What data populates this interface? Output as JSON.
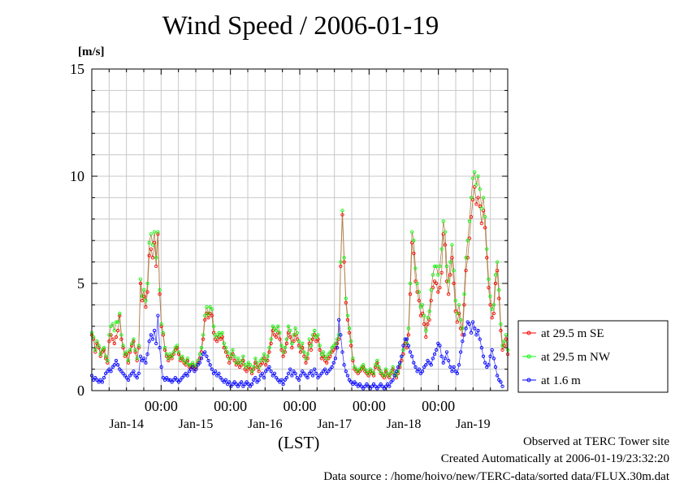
{
  "chart_data": {
    "type": "line",
    "title": "Wind Speed / 2006-01-19",
    "ylabel": "[m/s]",
    "xlabel": "(LST)",
    "ylim": [
      0,
      15
    ],
    "yticks": [
      "0",
      "5",
      "10",
      "15"
    ],
    "x_hour_ticks": [
      "00:00",
      "00:00",
      "00:00",
      "00:00",
      "00:00"
    ],
    "x_day_labels": [
      "Jan-14",
      "Jan-15",
      "Jan-16",
      "Jan-17",
      "Jan-18",
      "Jan-19"
    ],
    "grid": true,
    "legend_position": "right",
    "interval_minutes": 30,
    "series": [
      {
        "name": "at 29.5 m SE",
        "color": "#ff0000",
        "values": [
          2.6,
          2.4,
          1.8,
          2.2,
          2.0,
          1.6,
          1.8,
          1.9,
          1.5,
          1.3,
          2.3,
          2.6,
          2.4,
          2.2,
          2.5,
          2.8,
          3.5,
          2.4,
          2.0,
          1.6,
          1.7,
          1.3,
          1.8,
          2.1,
          2.3,
          1.8,
          1.4,
          2.0,
          5.0,
          4.2,
          4.4,
          3.9,
          4.6,
          6.3,
          6.6,
          6.2,
          6.9,
          5.8,
          7.3,
          4.5,
          3.0,
          2.6,
          1.9,
          1.6,
          1.4,
          1.6,
          1.5,
          1.7,
          1.9,
          2.0,
          1.7,
          1.4,
          1.5,
          1.3,
          1.2,
          1.4,
          1.1,
          1.1,
          1.2,
          1.0,
          1.1,
          1.3,
          1.5,
          1.8,
          2.4,
          3.3,
          3.6,
          3.4,
          3.6,
          3.5,
          2.7,
          2.4,
          2.3,
          2.5,
          2.4,
          2.5,
          2.0,
          1.8,
          1.6,
          1.3,
          1.5,
          1.7,
          1.4,
          1.2,
          1.3,
          1.1,
          1.2,
          1.4,
          1.0,
          0.9,
          1.1,
          1.0,
          0.8,
          1.0,
          1.3,
          1.1,
          0.9,
          1.2,
          1.3,
          1.5,
          1.2,
          1.4,
          1.8,
          2.2,
          2.8,
          2.6,
          2.5,
          2.7,
          2.4,
          1.9,
          1.6,
          1.8,
          2.2,
          2.7,
          2.5,
          2.0,
          2.3,
          2.6,
          2.4,
          2.1,
          1.8,
          2.0,
          1.6,
          1.3,
          1.5,
          2.2,
          1.9,
          2.4,
          2.6,
          2.3,
          2.4,
          1.9,
          1.5,
          1.6,
          1.4,
          1.3,
          1.5,
          1.6,
          1.8,
          1.9,
          2.0,
          2.2,
          2.4,
          5.8,
          8.2,
          6.0,
          4.1,
          3.3,
          2.7,
          2.1,
          1.4,
          1.0,
          0.9,
          0.8,
          0.9,
          1.0,
          1.1,
          0.9,
          0.8,
          0.7,
          0.9,
          0.8,
          0.7,
          1.1,
          1.3,
          1.0,
          0.8,
          0.7,
          0.6,
          0.9,
          0.7,
          0.6,
          0.8,
          1.0,
          0.7,
          0.6,
          0.8,
          1.1,
          1.4,
          1.7,
          2.2,
          2.0,
          2.6,
          4.5,
          6.9,
          6.4,
          5.1,
          4.6,
          4.2,
          3.5,
          3.6,
          3.1,
          2.5,
          3.1,
          3.3,
          4.2,
          4.8,
          5.1,
          5.0,
          4.6,
          4.8,
          5.5,
          7.3,
          6.8,
          5.1,
          4.5,
          5.4,
          6.2,
          5.0,
          3.7,
          3.2,
          3.6,
          2.9,
          2.6,
          4.0,
          5.6,
          6.2,
          7.1,
          8.1,
          8.9,
          9.5,
          8.7,
          9.0,
          8.6,
          7.8,
          8.4,
          7.6,
          6.2,
          4.8,
          4.0,
          3.4,
          3.6,
          5.0,
          5.6,
          4.3,
          2.8,
          1.9,
          2.1,
          2.4,
          1.7
        ]
      },
      {
        "name": "at 29.5 m NW",
        "color": "#00ff00",
        "values": [
          2.7,
          2.5,
          1.9,
          2.3,
          2.1,
          1.7,
          1.9,
          2.0,
          1.6,
          1.4,
          2.6,
          3.0,
          3.1,
          2.8,
          3.2,
          3.2,
          3.6,
          2.6,
          2.1,
          1.7,
          1.8,
          1.4,
          1.9,
          2.2,
          2.4,
          1.9,
          1.5,
          2.1,
          5.2,
          4.4,
          4.7,
          4.2,
          5.0,
          6.9,
          7.3,
          6.8,
          7.4,
          6.2,
          7.4,
          4.7,
          3.1,
          2.7,
          2.0,
          1.7,
          1.5,
          1.7,
          1.6,
          1.8,
          2.0,
          2.1,
          1.8,
          1.5,
          1.6,
          1.4,
          1.3,
          1.5,
          1.2,
          1.2,
          1.3,
          1.1,
          1.2,
          1.4,
          1.7,
          2.0,
          2.6,
          3.5,
          3.9,
          3.6,
          3.9,
          3.8,
          3.0,
          2.6,
          2.5,
          2.7,
          2.6,
          2.7,
          2.2,
          2.0,
          1.8,
          1.5,
          1.7,
          1.9,
          1.6,
          1.3,
          1.5,
          1.3,
          1.4,
          1.6,
          1.2,
          1.1,
          1.3,
          1.2,
          0.9,
          1.1,
          1.5,
          1.3,
          1.1,
          1.4,
          1.5,
          1.7,
          1.4,
          1.6,
          2.0,
          2.4,
          3.0,
          2.9,
          2.8,
          3.0,
          2.7,
          2.1,
          1.8,
          2.0,
          2.4,
          3.0,
          2.8,
          2.2,
          2.6,
          2.9,
          2.7,
          2.3,
          2.0,
          2.2,
          1.8,
          1.5,
          1.7,
          2.4,
          2.1,
          2.6,
          2.8,
          2.5,
          2.6,
          2.1,
          1.7,
          1.8,
          1.6,
          1.5,
          1.7,
          1.8,
          2.0,
          2.1,
          2.2,
          2.4,
          2.6,
          6.0,
          8.4,
          6.2,
          4.3,
          3.5,
          2.9,
          2.3,
          1.5,
          1.1,
          1.0,
          0.9,
          1.0,
          1.1,
          1.2,
          1.0,
          0.9,
          0.8,
          1.0,
          0.9,
          0.8,
          1.2,
          1.4,
          1.1,
          0.9,
          0.8,
          0.7,
          1.0,
          0.8,
          0.7,
          0.9,
          1.1,
          0.8,
          0.7,
          0.9,
          1.2,
          1.6,
          1.9,
          2.4,
          2.2,
          2.9,
          5.0,
          7.4,
          7.0,
          5.7,
          5.0,
          4.6,
          3.9,
          4.0,
          3.5,
          2.8,
          3.4,
          3.7,
          4.7,
          5.4,
          5.8,
          5.8,
          5.4,
          5.8,
          6.6,
          7.9,
          7.4,
          5.8,
          5.1,
          6.0,
          6.8,
          5.6,
          4.2,
          3.6,
          4.0,
          3.3,
          2.9,
          4.5,
          6.2,
          7.0,
          7.9,
          9.0,
          9.9,
          10.2,
          9.6,
          10.0,
          9.4,
          8.5,
          9.0,
          8.1,
          6.6,
          5.2,
          4.4,
          3.8,
          4.0,
          5.4,
          6.0,
          4.7,
          3.1,
          2.1,
          2.3,
          2.6,
          1.9
        ]
      },
      {
        "name": "at 1.6 m",
        "color": "#0000ff",
        "values": [
          0.7,
          0.5,
          0.6,
          0.5,
          0.4,
          0.5,
          0.4,
          0.6,
          0.8,
          0.9,
          1.0,
          0.9,
          1.1,
          1.2,
          1.4,
          1.2,
          1.0,
          0.9,
          0.8,
          0.7,
          0.6,
          0.5,
          0.7,
          0.8,
          0.9,
          0.7,
          0.6,
          0.8,
          1.6,
          1.4,
          1.5,
          1.3,
          1.7,
          2.3,
          2.6,
          2.4,
          2.8,
          2.2,
          3.5,
          2.0,
          1.1,
          0.6,
          0.5,
          0.6,
          0.5,
          0.5,
          0.4,
          0.5,
          0.6,
          0.5,
          0.4,
          0.5,
          0.6,
          0.7,
          0.8,
          0.7,
          0.9,
          1.0,
          1.1,
          0.9,
          1.0,
          1.2,
          1.3,
          1.5,
          1.7,
          1.8,
          1.6,
          1.4,
          1.2,
          1.0,
          0.8,
          0.9,
          0.7,
          0.8,
          0.6,
          0.5,
          0.4,
          0.5,
          0.3,
          0.4,
          0.2,
          0.3,
          0.4,
          0.3,
          0.2,
          0.3,
          0.4,
          0.2,
          0.3,
          0.4,
          0.3,
          0.2,
          0.3,
          0.5,
          0.6,
          0.4,
          0.5,
          0.7,
          0.8,
          0.6,
          0.9,
          1.0,
          1.1,
          0.9,
          0.7,
          0.8,
          0.6,
          0.5,
          0.4,
          0.5,
          0.3,
          0.5,
          0.6,
          0.8,
          1.0,
          0.7,
          0.9,
          0.8,
          0.6,
          0.5,
          0.7,
          0.9,
          0.8,
          0.7,
          0.6,
          0.8,
          0.9,
          0.7,
          1.0,
          0.8,
          0.6,
          0.7,
          0.8,
          0.9,
          1.0,
          0.8,
          0.9,
          1.0,
          1.1,
          1.3,
          1.5,
          2.0,
          3.3,
          2.6,
          1.8,
          1.2,
          0.9,
          0.7,
          0.5,
          0.4,
          0.3,
          0.4,
          0.3,
          0.2,
          0.3,
          0.2,
          0.1,
          0.2,
          0.3,
          0.2,
          0.1,
          0.2,
          0.3,
          0.2,
          0.1,
          0.2,
          0.3,
          0.2,
          0.1,
          0.2,
          0.3,
          0.2,
          0.4,
          0.5,
          0.7,
          0.9,
          1.1,
          1.3,
          1.6,
          2.1,
          2.4,
          2.4,
          2.1,
          1.8,
          1.6,
          1.3,
          1.1,
          0.9,
          1.0,
          0.8,
          0.9,
          1.1,
          1.2,
          1.4,
          1.3,
          1.2,
          1.5,
          1.7,
          1.9,
          2.2,
          2.1,
          1.6,
          1.3,
          1.5,
          1.8,
          1.4,
          1.1,
          0.9,
          1.1,
          0.9,
          0.8,
          1.2,
          1.8,
          2.3,
          2.6,
          2.9,
          3.2,
          3.1,
          2.7,
          3.2,
          2.9,
          2.6,
          2.8,
          2.4,
          2.0,
          1.6,
          1.3,
          1.1,
          1.2,
          1.6,
          1.9,
          1.5,
          1.1,
          0.7,
          0.5,
          0.4,
          0.2
        ]
      }
    ]
  },
  "footer": {
    "observed": "Observed at TERC Tower site",
    "created": "Created Automatically at 2006-01-19/23:32:20",
    "source": "Data source : /home/hoivo/new/TERC-data/sorted  data/FLUX.30m.dat"
  }
}
